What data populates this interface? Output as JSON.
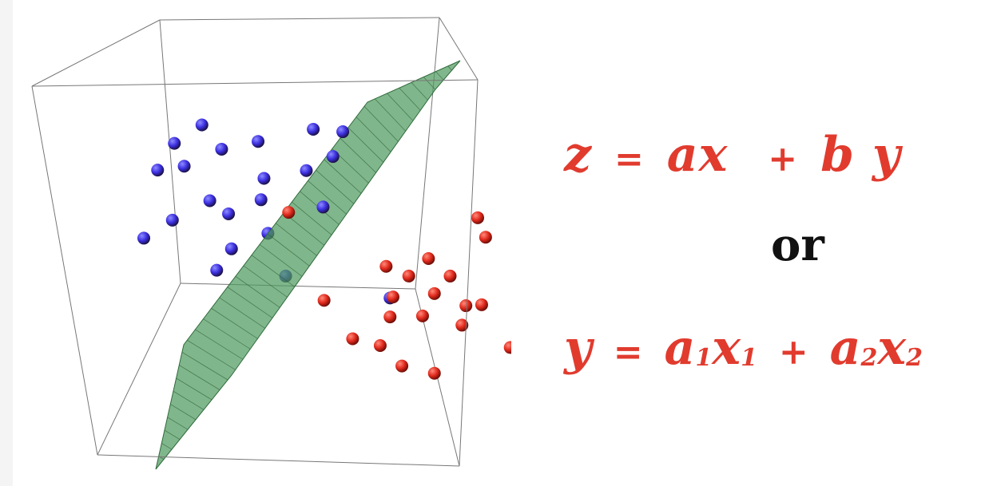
{
  "equation_1": {
    "lhs": "z",
    "equals": "=",
    "term1_coef": "a",
    "term1_var": "x",
    "plus": "+",
    "term2_coef": "b",
    "term2_var": "y"
  },
  "connector": "or",
  "equation_2": {
    "lhs": "y",
    "equals": "=",
    "term1_coef": "a",
    "term1_coef_sub": "1",
    "term1_var": "x",
    "term1_var_sub": "1",
    "plus": "+",
    "term2_coef": "a",
    "term2_coef_sub": "2",
    "term2_var": "x",
    "term2_var_sub": "2"
  },
  "colors": {
    "equation_text": "#e13b2e",
    "connector_text": "#111111",
    "class_blue": "#3b2fe0",
    "class_red": "#e0291c",
    "plane": "#4f9a5e",
    "box_edge": "#777777"
  },
  "diagram": {
    "blue_points": [
      [
        0.205,
        0.257
      ],
      [
        0.177,
        0.295
      ],
      [
        0.225,
        0.307
      ],
      [
        0.262,
        0.291
      ],
      [
        0.318,
        0.266
      ],
      [
        0.348,
        0.271
      ],
      [
        0.338,
        0.322
      ],
      [
        0.16,
        0.35
      ],
      [
        0.187,
        0.342
      ],
      [
        0.268,
        0.367
      ],
      [
        0.311,
        0.351
      ],
      [
        0.213,
        0.413
      ],
      [
        0.232,
        0.44
      ],
      [
        0.265,
        0.411
      ],
      [
        0.328,
        0.426
      ],
      [
        0.175,
        0.453
      ],
      [
        0.146,
        0.49
      ],
      [
        0.272,
        0.48
      ],
      [
        0.235,
        0.512
      ],
      [
        0.22,
        0.556
      ],
      [
        0.29,
        0.568
      ],
      [
        0.396,
        0.613
      ]
    ],
    "red_points": [
      [
        0.293,
        0.437
      ],
      [
        0.485,
        0.448
      ],
      [
        0.493,
        0.488
      ],
      [
        0.545,
        0.516
      ],
      [
        0.558,
        0.545
      ],
      [
        0.392,
        0.548
      ],
      [
        0.435,
        0.532
      ],
      [
        0.415,
        0.568
      ],
      [
        0.457,
        0.568
      ],
      [
        0.399,
        0.611
      ],
      [
        0.441,
        0.604
      ],
      [
        0.473,
        0.629
      ],
      [
        0.489,
        0.627
      ],
      [
        0.529,
        0.601
      ],
      [
        0.53,
        0.64
      ],
      [
        0.396,
        0.652
      ],
      [
        0.429,
        0.65
      ],
      [
        0.469,
        0.669
      ],
      [
        0.526,
        0.677
      ],
      [
        0.358,
        0.697
      ],
      [
        0.386,
        0.711
      ],
      [
        0.518,
        0.715
      ],
      [
        0.408,
        0.753
      ],
      [
        0.441,
        0.768
      ],
      [
        0.525,
        0.809
      ],
      [
        0.329,
        0.618
      ]
    ]
  }
}
